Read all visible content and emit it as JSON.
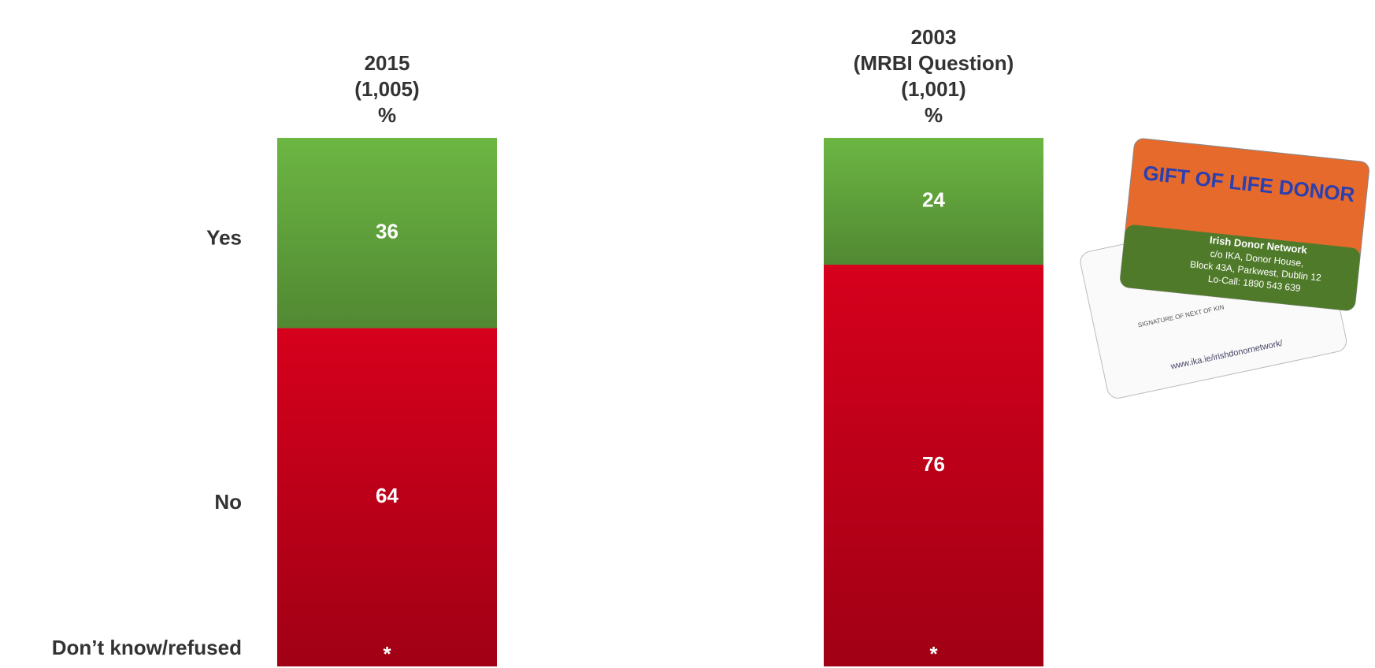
{
  "chart_data": {
    "type": "stacked_bar",
    "categories": [
      "2015\n(1,005)\n%",
      "2003\n(MRBI Question)\n(1,001)\n%"
    ],
    "series": [
      {
        "name": "Yes",
        "color": "#6cb643",
        "values": [
          36,
          24
        ]
      },
      {
        "name": "No",
        "color": "#d6001c",
        "values": [
          64,
          76
        ]
      },
      {
        "name": "Don’t know/refused",
        "color": "#a50018",
        "values": [
          0,
          0
        ],
        "value_labels": [
          "*",
          "*"
        ]
      }
    ],
    "ylim": [
      0,
      100
    ]
  },
  "card": {
    "title": "GIFT OF LIFE DONOR",
    "lines": [
      "Irish Donor Network",
      "c/o IKA, Donor House,",
      "Block 43A, Parkwest, Dublin 12",
      "Lo-Call: 1890 543 639"
    ],
    "back": [
      "SIGNATURE OF NEXT OF KIN",
      "www.ika.ie/irishdonornetwork/"
    ]
  }
}
